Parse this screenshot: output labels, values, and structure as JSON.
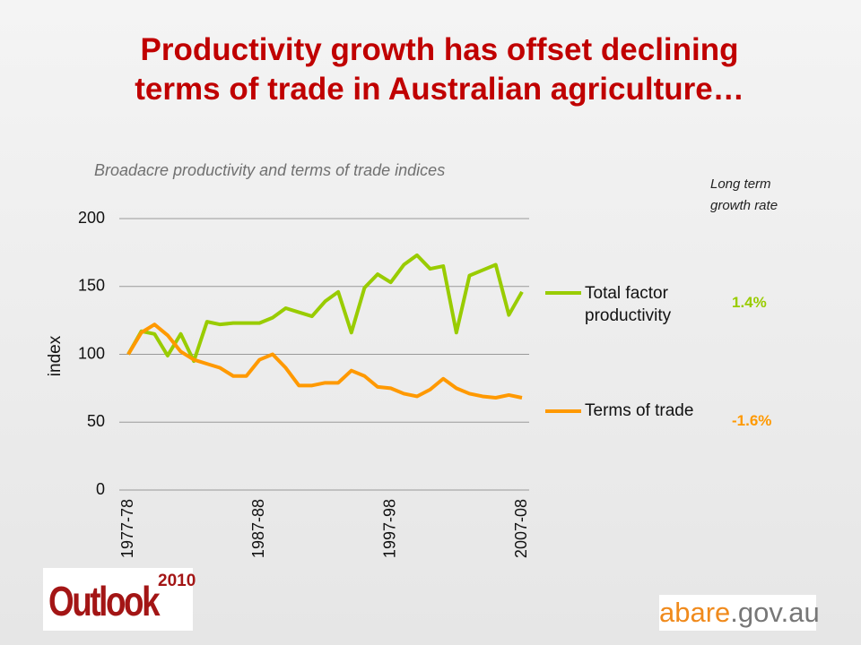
{
  "title": "Productivity growth has offset declining\nterms of trade in Australian agriculture…",
  "chart_data": {
    "type": "line",
    "subtitle": "Broadacre productivity and terms of trade indices",
    "ylabel": "index",
    "categories": [
      "1977-78",
      null,
      null,
      null,
      null,
      null,
      null,
      null,
      null,
      null,
      "1987-88",
      null,
      null,
      null,
      null,
      null,
      null,
      null,
      null,
      null,
      "1997-98",
      null,
      null,
      null,
      null,
      null,
      null,
      null,
      null,
      null,
      "2007-08"
    ],
    "series": [
      {
        "name": "Total factor productivity",
        "color": "#99cc00",
        "values": [
          100,
          117,
          115,
          99,
          115,
          95,
          124,
          122,
          123,
          123,
          123,
          127,
          134,
          131,
          128,
          139,
          146,
          116,
          149,
          159,
          153,
          166,
          173,
          163,
          165,
          116,
          158,
          162,
          166,
          129,
          146
        ]
      },
      {
        "name": "Terms of trade",
        "color": "#ff9900",
        "values": [
          100,
          116,
          122,
          114,
          102,
          96,
          93,
          90,
          84,
          84,
          96,
          100,
          90,
          77,
          77,
          79,
          79,
          88,
          84,
          76,
          75,
          71,
          69,
          74,
          82,
          75,
          71,
          69,
          68,
          70,
          68
        ]
      }
    ],
    "ylim": [
      0,
      200
    ],
    "yticks": [
      0,
      50,
      100,
      150,
      200
    ],
    "grid": true,
    "annotation_header": "Long term growth rate",
    "annotations": [
      "1.4%",
      "-1.6%"
    ]
  },
  "logos": {
    "outlook": "Outlook",
    "year": "2010",
    "abare": "abare",
    "domain": ".gov.au"
  }
}
